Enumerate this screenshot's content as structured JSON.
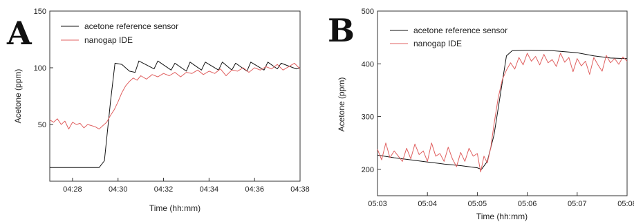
{
  "chart_data": [
    {
      "type": "line",
      "panel_label": "A",
      "xlabel": "Time (hh:mm)",
      "ylabel": "Acetone (ppm)",
      "xlim": [
        "04:27:00",
        "04:38:00"
      ],
      "ylim": [
        0,
        150
      ],
      "x_ticks": [
        "04:28",
        "04:30",
        "04:32",
        "04:34",
        "04:36",
        "04:38"
      ],
      "y_ticks": [
        50,
        100,
        150
      ],
      "legend_position": "top-left",
      "series": [
        {
          "name": "acetone reference sensor",
          "color": "#111111",
          "x": [
            "04:27:00",
            "04:29:10",
            "04:29:24",
            "04:29:40",
            "04:29:52",
            "04:30:10",
            "04:30:30",
            "04:30:45",
            "04:30:55",
            "04:31:35",
            "04:31:45",
            "04:32:20",
            "04:32:30",
            "04:33:00",
            "04:33:10",
            "04:33:40",
            "04:33:50",
            "04:34:25",
            "04:34:35",
            "04:35:00",
            "04:35:10",
            "04:35:40",
            "04:35:50",
            "04:36:25",
            "04:36:35",
            "04:37:00",
            "04:37:10",
            "04:37:50",
            "04:38:00"
          ],
          "values": [
            12,
            12,
            18,
            70,
            104,
            103,
            97,
            96,
            106,
            99,
            106,
            98,
            104,
            97,
            105,
            98,
            105,
            98,
            105,
            98,
            104,
            97,
            105,
            98,
            105,
            99,
            104,
            99,
            100
          ]
        },
        {
          "name": "nanogap IDE",
          "color": "#e06060",
          "x": [
            "04:27:00",
            "04:27:10",
            "04:27:20",
            "04:27:30",
            "04:27:40",
            "04:27:50",
            "04:28:00",
            "04:28:10",
            "04:28:20",
            "04:28:30",
            "04:28:40",
            "04:28:50",
            "04:29:00",
            "04:29:10",
            "04:29:20",
            "04:29:30",
            "04:29:40",
            "04:29:50",
            "04:30:00",
            "04:30:10",
            "04:30:20",
            "04:30:30",
            "04:30:40",
            "04:30:50",
            "04:31:00",
            "04:31:15",
            "04:31:30",
            "04:31:45",
            "04:32:00",
            "04:32:15",
            "04:32:30",
            "04:32:45",
            "04:33:00",
            "04:33:15",
            "04:33:30",
            "04:33:45",
            "04:34:00",
            "04:34:15",
            "04:34:30",
            "04:34:45",
            "04:35:00",
            "04:35:15",
            "04:35:30",
            "04:35:45",
            "04:36:00",
            "04:36:15",
            "04:36:30",
            "04:36:45",
            "04:37:00",
            "04:37:15",
            "04:37:30",
            "04:37:45",
            "04:38:00"
          ],
          "values": [
            54,
            52,
            55,
            50,
            53,
            46,
            52,
            50,
            51,
            47,
            50,
            49,
            48,
            46,
            49,
            52,
            58,
            63,
            70,
            78,
            84,
            88,
            91,
            89,
            93,
            90,
            94,
            92,
            95,
            93,
            96,
            92,
            96,
            95,
            98,
            94,
            97,
            95,
            99,
            93,
            98,
            97,
            100,
            96,
            100,
            98,
            101,
            99,
            103,
            98,
            101,
            104,
            99
          ]
        }
      ]
    },
    {
      "type": "line",
      "panel_label": "B",
      "xlabel": "Time (hh:mm)",
      "ylabel": "Acetone (ppm)",
      "xlim": [
        "05:03:00",
        "05:08:00"
      ],
      "ylim": [
        150,
        500
      ],
      "x_ticks": [
        "05:03",
        "05:04",
        "05:05",
        "05:06",
        "05:07",
        "05:08"
      ],
      "y_ticks": [
        200,
        300,
        400,
        500
      ],
      "legend_position": "top-left",
      "series": [
        {
          "name": "acetone reference sensor",
          "color": "#111111",
          "x": [
            "05:03:00",
            "05:03:20",
            "05:03:40",
            "05:04:00",
            "05:04:20",
            "05:04:40",
            "05:05:00",
            "05:05:05",
            "05:05:12",
            "05:05:20",
            "05:05:28",
            "05:05:35",
            "05:05:42",
            "05:06:00",
            "05:06:30",
            "05:07:00",
            "05:07:20",
            "05:07:40",
            "05:08:00"
          ],
          "values": [
            227,
            222,
            218,
            214,
            210,
            207,
            203,
            200,
            215,
            265,
            345,
            415,
            425,
            426,
            425,
            421,
            415,
            411,
            410
          ]
        },
        {
          "name": "nanogap IDE",
          "color": "#e06060",
          "x": [
            "05:03:00",
            "05:03:05",
            "05:03:10",
            "05:03:15",
            "05:03:20",
            "05:03:25",
            "05:03:30",
            "05:03:35",
            "05:03:40",
            "05:03:45",
            "05:03:50",
            "05:03:55",
            "05:04:00",
            "05:04:05",
            "05:04:10",
            "05:04:15",
            "05:04:20",
            "05:04:25",
            "05:04:30",
            "05:04:35",
            "05:04:40",
            "05:04:45",
            "05:04:50",
            "05:04:55",
            "05:05:00",
            "05:05:04",
            "05:05:08",
            "05:05:12",
            "05:05:16",
            "05:05:20",
            "05:05:25",
            "05:05:30",
            "05:05:35",
            "05:05:40",
            "05:05:45",
            "05:05:50",
            "05:05:55",
            "05:06:00",
            "05:06:05",
            "05:06:10",
            "05:06:15",
            "05:06:20",
            "05:06:25",
            "05:06:30",
            "05:06:35",
            "05:06:40",
            "05:06:45",
            "05:06:50",
            "05:06:55",
            "05:07:00",
            "05:07:05",
            "05:07:10",
            "05:07:15",
            "05:07:20",
            "05:07:25",
            "05:07:30",
            "05:07:35",
            "05:07:40",
            "05:07:45",
            "05:07:50",
            "05:07:55",
            "05:08:00"
          ],
          "values": [
            238,
            218,
            250,
            222,
            235,
            225,
            215,
            240,
            220,
            248,
            228,
            235,
            215,
            250,
            225,
            230,
            215,
            242,
            220,
            205,
            232,
            215,
            240,
            225,
            230,
            195,
            225,
            212,
            240,
            285,
            335,
            370,
            388,
            402,
            390,
            412,
            398,
            420,
            405,
            414,
            398,
            418,
            402,
            408,
            395,
            420,
            403,
            412,
            385,
            410,
            396,
            405,
            380,
            412,
            398,
            386,
            416,
            402,
            410,
            399,
            413,
            405
          ]
        }
      ]
    }
  ]
}
